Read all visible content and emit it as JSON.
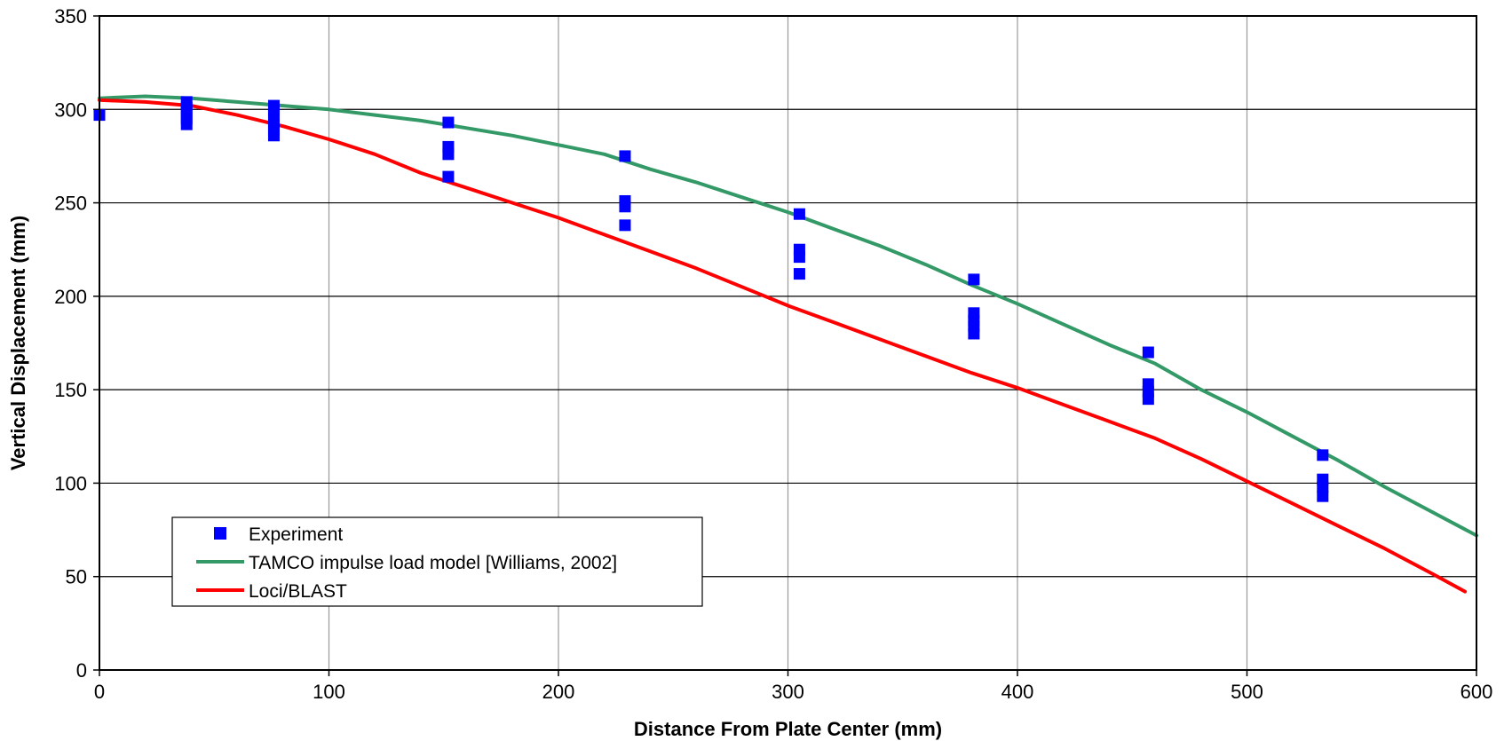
{
  "chart_data": {
    "type": "scatter",
    "title": "",
    "xlabel": "Distance From Plate Center (mm)",
    "ylabel": "Vertical Displacement (mm)",
    "xlim": [
      0,
      600
    ],
    "ylim": [
      0,
      350
    ],
    "x_ticks": [
      0,
      100,
      200,
      300,
      400,
      500,
      600
    ],
    "y_ticks": [
      0,
      50,
      100,
      150,
      200,
      250,
      300,
      350
    ],
    "x_tick_labels": [
      "0",
      "100",
      "200",
      "300",
      "400",
      "500",
      "600"
    ],
    "y_tick_labels": [
      "0",
      "50",
      "100",
      "150",
      "200",
      "250",
      "300",
      "350"
    ],
    "grid": true,
    "legend_position": "bottom-left",
    "series": [
      {
        "name": "Experiment",
        "kind": "markers",
        "marker": "square",
        "color": "#0000ff",
        "points": [
          [
            0,
            297
          ],
          [
            38,
            304
          ],
          [
            38,
            301
          ],
          [
            38,
            298
          ],
          [
            38,
            295
          ],
          [
            38,
            292
          ],
          [
            76,
            302
          ],
          [
            76,
            299
          ],
          [
            76,
            296
          ],
          [
            76,
            292
          ],
          [
            76,
            289
          ],
          [
            76,
            286
          ],
          [
            152,
            293
          ],
          [
            152,
            280
          ],
          [
            152,
            276
          ],
          [
            152,
            264
          ],
          [
            229,
            275
          ],
          [
            229,
            251
          ],
          [
            229,
            248
          ],
          [
            229,
            238
          ],
          [
            305,
            244
          ],
          [
            305,
            225
          ],
          [
            305,
            221
          ],
          [
            305,
            212
          ],
          [
            381,
            209
          ],
          [
            381,
            191
          ],
          [
            381,
            187
          ],
          [
            381,
            184
          ],
          [
            381,
            180
          ],
          [
            457,
            170
          ],
          [
            457,
            153
          ],
          [
            457,
            149
          ],
          [
            457,
            145
          ],
          [
            533,
            115
          ],
          [
            533,
            102
          ],
          [
            533,
            98
          ],
          [
            533,
            93
          ]
        ]
      },
      {
        "name": "TAMCO impulse load model [Williams, 2002]",
        "kind": "line",
        "color": "#339966",
        "points": [
          [
            0,
            306
          ],
          [
            20,
            307
          ],
          [
            40,
            306
          ],
          [
            60,
            304
          ],
          [
            80,
            302
          ],
          [
            100,
            300
          ],
          [
            120,
            297
          ],
          [
            140,
            294
          ],
          [
            160,
            290
          ],
          [
            180,
            286
          ],
          [
            200,
            281
          ],
          [
            220,
            276
          ],
          [
            240,
            268
          ],
          [
            260,
            261
          ],
          [
            280,
            253
          ],
          [
            300,
            245
          ],
          [
            320,
            236
          ],
          [
            340,
            227
          ],
          [
            360,
            217
          ],
          [
            380,
            206
          ],
          [
            400,
            196
          ],
          [
            420,
            185
          ],
          [
            440,
            174
          ],
          [
            460,
            164
          ],
          [
            480,
            150
          ],
          [
            500,
            138
          ],
          [
            520,
            125
          ],
          [
            540,
            112
          ],
          [
            560,
            98
          ],
          [
            580,
            85
          ],
          [
            600,
            72
          ]
        ]
      },
      {
        "name": "Loci/BLAST",
        "kind": "line",
        "color": "#ff0000",
        "points": [
          [
            0,
            305
          ],
          [
            20,
            304
          ],
          [
            40,
            302
          ],
          [
            60,
            297
          ],
          [
            80,
            291
          ],
          [
            100,
            284
          ],
          [
            120,
            276
          ],
          [
            140,
            266
          ],
          [
            160,
            258
          ],
          [
            180,
            250
          ],
          [
            200,
            242
          ],
          [
            220,
            233
          ],
          [
            240,
            224
          ],
          [
            260,
            215
          ],
          [
            280,
            205
          ],
          [
            300,
            195
          ],
          [
            320,
            186
          ],
          [
            340,
            177
          ],
          [
            360,
            168
          ],
          [
            380,
            159
          ],
          [
            400,
            151
          ],
          [
            420,
            142
          ],
          [
            440,
            133
          ],
          [
            460,
            124
          ],
          [
            480,
            113
          ],
          [
            500,
            101
          ],
          [
            520,
            89
          ],
          [
            540,
            77
          ],
          [
            560,
            65
          ],
          [
            580,
            52
          ],
          [
            595,
            42
          ]
        ]
      }
    ]
  }
}
